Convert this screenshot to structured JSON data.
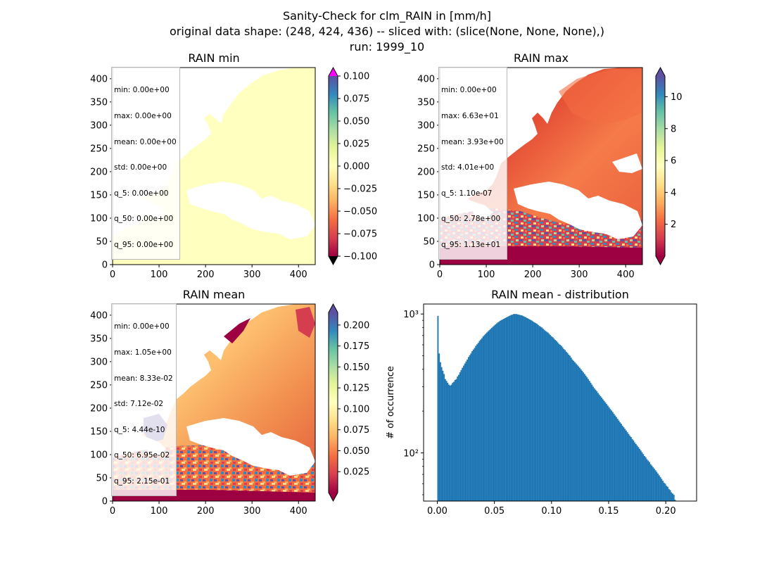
{
  "figure": {
    "title_lines": [
      "Sanity-Check for clm_RAIN in [mm/h]",
      "original data shape: (248, 424, 436) -- sliced with: (slice(None, None, None),)",
      "run: 1999_10"
    ]
  },
  "colors": {
    "histogram_bar": "#1f77b4",
    "colormap": "Spectral",
    "over_color": "#ff00ff",
    "under_color": "#000000"
  },
  "chart_data": [
    {
      "type": "heatmap",
      "title": "RAIN min",
      "colormap": "Spectral",
      "x_ticks": [
        0,
        100,
        200,
        300,
        400
      ],
      "y_ticks": [
        0,
        50,
        100,
        150,
        200,
        250,
        300,
        350,
        400
      ],
      "xlim": [
        0,
        436
      ],
      "ylim": [
        0,
        424
      ],
      "colorbar": {
        "ticks": [
          "0.100",
          "0.075",
          "0.050",
          "0.025",
          "0.000",
          "−0.025",
          "−0.050",
          "−0.075",
          "−0.100"
        ],
        "range": [
          -0.1,
          0.1
        ],
        "extend": "both"
      },
      "stats": [
        "min: 0.00e+00",
        "max: 0.00e+00",
        "mean: 0.00e+00",
        "std: 0.00e+00",
        "q_5: 0.00e+00",
        "q_50: 0.00e+00",
        "q_95: 0.00e+00"
      ]
    },
    {
      "type": "heatmap",
      "title": "RAIN max",
      "colormap": "Spectral",
      "x_ticks": [
        0,
        100,
        200,
        300,
        400
      ],
      "y_ticks": [
        0,
        50,
        100,
        150,
        200,
        250,
        300,
        350,
        400
      ],
      "xlim": [
        0,
        436
      ],
      "ylim": [
        0,
        424
      ],
      "colorbar": {
        "ticks": [
          "10",
          "8",
          "6",
          "4",
          "2"
        ],
        "range": [
          0.0,
          11.3
        ],
        "extend": "both"
      },
      "stats": [
        "min: 0.00e+00",
        "max: 6.63e+01",
        "mean: 3.93e+00",
        "std: 4.01e+00",
        "q_5: 1.10e-07",
        "q_50: 2.78e+00",
        "q_95: 1.13e+01"
      ]
    },
    {
      "type": "heatmap",
      "title": "RAIN mean",
      "colormap": "Spectral",
      "x_ticks": [
        0,
        100,
        200,
        300,
        400
      ],
      "y_ticks": [
        0,
        50,
        100,
        150,
        200,
        250,
        300,
        350,
        400
      ],
      "xlim": [
        0,
        436
      ],
      "ylim": [
        0,
        424
      ],
      "colorbar": {
        "ticks": [
          "0.200",
          "0.175",
          "0.150",
          "0.125",
          "0.100",
          "0.075",
          "0.050",
          "0.025"
        ],
        "range": [
          0.0,
          0.215
        ],
        "extend": "both"
      },
      "stats": [
        "min: 0.00e+00",
        "max: 1.05e+00",
        "mean: 8.33e-02",
        "std: 7.12e-02",
        "q_5: 4.44e-10",
        "q_50: 6.95e-02",
        "q_95: 2.15e-01"
      ]
    },
    {
      "type": "bar",
      "title": "RAIN mean - distribution",
      "ylabel": "# of occurrence",
      "xlabel": "",
      "yscale": "log",
      "x_ticks": [
        "0.00",
        "0.05",
        "0.10",
        "0.15",
        "0.20"
      ],
      "y_ticks": [
        "10²",
        "10³"
      ],
      "xlim": [
        -0.012,
        0.227
      ],
      "ylim": [
        45,
        1180
      ],
      "bin_start": 0.0,
      "bin_width": 0.00107,
      "values": [
        970,
        520,
        450,
        415,
        390,
        370,
        340,
        330,
        320,
        310,
        305,
        310,
        320,
        325,
        335,
        340,
        355,
        365,
        380,
        395,
        410,
        425,
        440,
        455,
        470,
        490,
        505,
        520,
        540,
        555,
        570,
        590,
        605,
        620,
        640,
        655,
        670,
        690,
        705,
        720,
        735,
        750,
        765,
        780,
        795,
        810,
        825,
        840,
        855,
        870,
        880,
        895,
        905,
        915,
        925,
        935,
        945,
        955,
        965,
        975,
        985,
        990,
        1000,
        1000,
        1000,
        995,
        990,
        985,
        980,
        975,
        965,
        955,
        945,
        935,
        925,
        915,
        905,
        895,
        880,
        870,
        860,
        850,
        835,
        820,
        810,
        800,
        785,
        770,
        755,
        745,
        735,
        720,
        705,
        690,
        680,
        665,
        650,
        640,
        625,
        610,
        600,
        590,
        575,
        560,
        550,
        535,
        525,
        510,
        500,
        485,
        470,
        460,
        450,
        440,
        430,
        420,
        410,
        400,
        390,
        380,
        370,
        360,
        350,
        340,
        330,
        320,
        310,
        300,
        292,
        285,
        278,
        270,
        263,
        256,
        250,
        243,
        237,
        231,
        225,
        219,
        213,
        207,
        202,
        197,
        191,
        186,
        181,
        176,
        171,
        166,
        162,
        157,
        153,
        149,
        145,
        141,
        137,
        133,
        130,
        126,
        123,
        119,
        116,
        113,
        110,
        107,
        104,
        101,
        98,
        95,
        93,
        90,
        88,
        86,
        83,
        81,
        79,
        77,
        75,
        73,
        71,
        69,
        67,
        65,
        63,
        61,
        60,
        58,
        57,
        55,
        54,
        52,
        51,
        50,
        46
      ]
    }
  ]
}
